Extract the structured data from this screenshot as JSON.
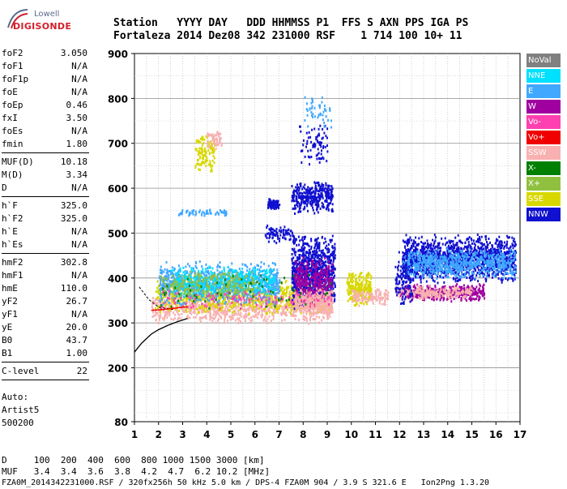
{
  "logo": {
    "brand": "Lowell",
    "product": "DIGISONDE"
  },
  "header": {
    "line1": "Station   YYYY DAY   DDD HHMMSS P1  FFS S AXN PPS IGA PS",
    "line2": "Fortaleza 2014 Dez08 342 231000 RSF    1 714 100 10+ 11"
  },
  "params": {
    "group1": [
      {
        "k": "foF2",
        "v": "3.050"
      },
      {
        "k": "foF1",
        "v": "N/A"
      },
      {
        "k": "foF1p",
        "v": "N/A"
      },
      {
        "k": "foE",
        "v": "N/A"
      },
      {
        "k": "foEp",
        "v": "0.46"
      },
      {
        "k": "fxI",
        "v": "3.50"
      },
      {
        "k": "foEs",
        "v": "N/A"
      },
      {
        "k": "fmin",
        "v": "1.80"
      }
    ],
    "group2": [
      {
        "k": "MUF(D)",
        "v": "10.18"
      },
      {
        "k": "M(D)",
        "v": "3.34"
      },
      {
        "k": "D",
        "v": "N/A"
      }
    ],
    "group3": [
      {
        "k": "h`F",
        "v": "325.0"
      },
      {
        "k": "h`F2",
        "v": "325.0"
      },
      {
        "k": "h`E",
        "v": "N/A"
      },
      {
        "k": "h`Es",
        "v": "N/A"
      }
    ],
    "group4": [
      {
        "k": "hmF2",
        "v": "302.8"
      },
      {
        "k": "hmF1",
        "v": "N/A"
      },
      {
        "k": "hmE",
        "v": "110.0"
      },
      {
        "k": "yF2",
        "v": "26.7"
      },
      {
        "k": "yF1",
        "v": "N/A"
      },
      {
        "k": "yE",
        "v": "20.0"
      },
      {
        "k": "B0",
        "v": "43.7"
      },
      {
        "k": "B1",
        "v": "1.00"
      }
    ],
    "group5": [
      {
        "k": "C-level",
        "v": "22"
      }
    ],
    "auto_label": "Auto:",
    "auto_name": "Artist5",
    "auto_id": "500200"
  },
  "legend": [
    {
      "label": "NoVal",
      "bg": "#808080",
      "fg": "#ffffff"
    },
    {
      "label": "NNE",
      "bg": "#00e0ff",
      "fg": "#ffffff"
    },
    {
      "label": "E",
      "bg": "#40a8ff",
      "fg": "#ffffff"
    },
    {
      "label": "W",
      "bg": "#a000a0",
      "fg": "#ffffff"
    },
    {
      "label": "Vo-",
      "bg": "#ff40b0",
      "fg": "#ffffff"
    },
    {
      "label": "Vo+",
      "bg": "#f00000",
      "fg": "#ffffff"
    },
    {
      "label": "SSW",
      "bg": "#f8b0b0",
      "fg": "#ffffff"
    },
    {
      "label": "X-",
      "bg": "#008000",
      "fg": "#ffffff"
    },
    {
      "label": "X+",
      "bg": "#90c040",
      "fg": "#ffffff"
    },
    {
      "label": "SSE",
      "bg": "#d8d800",
      "fg": "#ffffff"
    },
    {
      "label": "NNW",
      "bg": "#1010d0",
      "fg": "#ffffff"
    }
  ],
  "bottom": {
    "line1": "D     100  200  400  600  800 1000 1500 3000 [km]",
    "line2": "MUF   3.4  3.4  3.6  3.8  4.2  4.7  6.2 10.2 [MHz]",
    "line3": "FZA0M_2014342231000.RSF / 320fx256h 50 kHz 5.0 km / DPS-4 FZA0M 904 / 3.9 S 321.6 E   Ion2Png 1.3.20"
  },
  "chart_data": {
    "type": "scatter",
    "title": "",
    "xlabel": "",
    "ylabel": "",
    "xlim": [
      1,
      17
    ],
    "ylim": [
      80,
      900
    ],
    "x_ticks": [
      1,
      2,
      3,
      4,
      5,
      6,
      7,
      8,
      9,
      10,
      11,
      12,
      13,
      14,
      15,
      16,
      17
    ],
    "y_ticks": [
      80,
      200,
      300,
      400,
      500,
      600,
      700,
      800,
      900
    ],
    "grid": true,
    "clusters": [
      {
        "color": "#f8b0b0",
        "x": [
          1.7,
          9.2
        ],
        "y": [
          300,
          370
        ],
        "n": 900
      },
      {
        "color": "#d8d800",
        "x": [
          1.8,
          9.2
        ],
        "y": [
          320,
          400
        ],
        "n": 700
      },
      {
        "color": "#40a8ff",
        "x": [
          2.0,
          7.0
        ],
        "y": [
          340,
          440
        ],
        "n": 900
      },
      {
        "color": "#00e0ff",
        "x": [
          2.5,
          6.8
        ],
        "y": [
          360,
          430
        ],
        "n": 400
      },
      {
        "color": "#90c040",
        "x": [
          2.0,
          6.0
        ],
        "y": [
          350,
          420
        ],
        "n": 250
      },
      {
        "color": "#1010d0",
        "x": [
          7.5,
          9.3
        ],
        "y": [
          330,
          500
        ],
        "n": 900
      },
      {
        "color": "#a000a0",
        "x": [
          7.6,
          9.2
        ],
        "y": [
          340,
          450
        ],
        "n": 300
      },
      {
        "color": "#f8b0b0",
        "x": [
          7.6,
          9.2
        ],
        "y": [
          320,
          380
        ],
        "n": 300
      },
      {
        "color": "#1010d0",
        "x": [
          7.5,
          9.2
        ],
        "y": [
          545,
          620
        ],
        "n": 350
      },
      {
        "color": "#1010d0",
        "x": [
          6.5,
          7.0
        ],
        "y": [
          555,
          580
        ],
        "n": 80
      },
      {
        "color": "#1010d0",
        "x": [
          6.4,
          7.6
        ],
        "y": [
          480,
          520
        ],
        "n": 80
      },
      {
        "color": "#1010d0",
        "x": [
          7.8,
          9.0
        ],
        "y": [
          650,
          750
        ],
        "n": 80
      },
      {
        "color": "#d8d800",
        "x": [
          3.5,
          4.3
        ],
        "y": [
          640,
          730
        ],
        "n": 120
      },
      {
        "color": "#f8b0b0",
        "x": [
          4.0,
          4.6
        ],
        "y": [
          690,
          735
        ],
        "n": 60
      },
      {
        "color": "#40a8ff",
        "x": [
          2.8,
          4.8
        ],
        "y": [
          540,
          555
        ],
        "n": 60
      },
      {
        "color": "#40a8ff",
        "x": [
          8.0,
          9.2
        ],
        "y": [
          730,
          810
        ],
        "n": 50
      },
      {
        "color": "#d8d800",
        "x": [
          9.8,
          10.8
        ],
        "y": [
          340,
          420
        ],
        "n": 260
      },
      {
        "color": "#f8b0b0",
        "x": [
          10.0,
          11.5
        ],
        "y": [
          340,
          380
        ],
        "n": 120
      },
      {
        "color": "#1010d0",
        "x": [
          12.1,
          16.8
        ],
        "y": [
          390,
          500
        ],
        "n": 1400
      },
      {
        "color": "#40a8ff",
        "x": [
          12.1,
          16.8
        ],
        "y": [
          400,
          470
        ],
        "n": 700
      },
      {
        "color": "#a000a0",
        "x": [
          12.0,
          15.5
        ],
        "y": [
          350,
          390
        ],
        "n": 400
      },
      {
        "color": "#f8b0b0",
        "x": [
          11.8,
          15.0
        ],
        "y": [
          355,
          385
        ],
        "n": 250
      },
      {
        "color": "#1010d0",
        "x": [
          11.8,
          12.5
        ],
        "y": [
          330,
          470
        ],
        "n": 120
      },
      {
        "color": "#ff40b0",
        "x": [
          2.0,
          9.2
        ],
        "y": [
          330,
          380
        ],
        "n": 120
      },
      {
        "color": "#008000",
        "x": [
          2.0,
          9.2
        ],
        "y": [
          330,
          420
        ],
        "n": 60
      }
    ],
    "trace_line": {
      "color": "#000000",
      "x": [
        1.0,
        1.3,
        1.7,
        2.0,
        2.4,
        2.8,
        3.2
      ],
      "y": [
        235,
        255,
        275,
        285,
        295,
        303,
        310
      ]
    },
    "trace_dashed": {
      "color": "#000000",
      "x": [
        1.2,
        1.6,
        2.0,
        2.6
      ],
      "y": [
        380,
        352,
        335,
        330
      ]
    },
    "trace_red": {
      "color": "#f00000",
      "x": [
        1.7,
        2.2,
        2.7,
        3.2
      ],
      "y": [
        328,
        330,
        333,
        336
      ]
    }
  }
}
